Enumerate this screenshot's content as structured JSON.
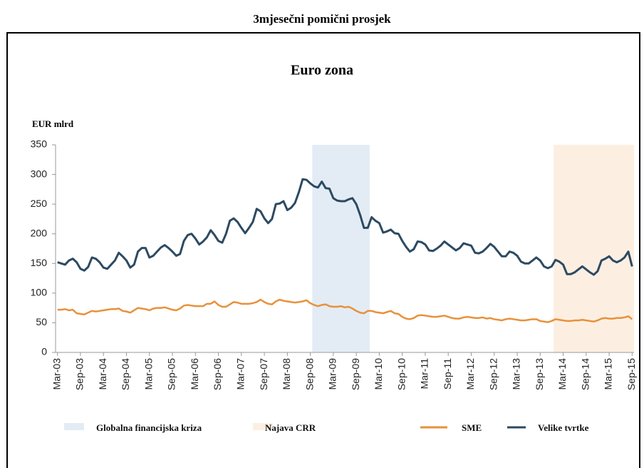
{
  "title": "3mjesečni pomični prosjek",
  "chart_data": {
    "type": "line",
    "title": "Euro zona",
    "y_label": "EUR mlrd",
    "categories": [
      "Mar-03",
      null,
      null,
      null,
      null,
      null,
      "Sep-03",
      null,
      null,
      null,
      null,
      null,
      "Mar-04",
      null,
      null,
      null,
      null,
      null,
      "Sep-04",
      null,
      null,
      null,
      null,
      null,
      "Mar-05",
      null,
      null,
      null,
      null,
      null,
      "Sep-05",
      null,
      null,
      null,
      null,
      null,
      "Mar-06",
      null,
      null,
      null,
      null,
      null,
      "Sep-06",
      null,
      null,
      null,
      null,
      null,
      "Mar-07",
      null,
      null,
      null,
      null,
      null,
      "Sep-07",
      null,
      null,
      null,
      null,
      null,
      "Mar-08",
      null,
      null,
      null,
      null,
      null,
      "Sep-08",
      null,
      null,
      null,
      null,
      null,
      "Mar-09",
      null,
      null,
      null,
      null,
      null,
      "Sep-09",
      null,
      null,
      null,
      null,
      null,
      "Mar-10",
      null,
      null,
      null,
      null,
      null,
      "Sep-10",
      null,
      null,
      null,
      null,
      null,
      "Mar-11",
      null,
      null,
      null,
      null,
      null,
      "Sep-11",
      null,
      null,
      null,
      null,
      null,
      "Mar-12",
      null,
      null,
      null,
      null,
      null,
      "Sep-12",
      null,
      null,
      null,
      null,
      null,
      "Mar-13",
      null,
      null,
      null,
      null,
      null,
      "Sep-13",
      null,
      null,
      null,
      null,
      null,
      "Mar-14",
      null,
      null,
      null,
      null,
      null,
      "Sep-14",
      null,
      null,
      null,
      null,
      null,
      "Mar-15",
      null,
      null,
      null,
      null,
      null,
      "Sep-15"
    ],
    "series": [
      {
        "name": "SME",
        "color": "#e8913a",
        "values": [
          72,
          72,
          73,
          71,
          72,
          66,
          65,
          64,
          67,
          70,
          69,
          70,
          71,
          72,
          73,
          73,
          74,
          70,
          69,
          67,
          71,
          75,
          74,
          73,
          71,
          74,
          75,
          75,
          76,
          74,
          72,
          71,
          74,
          79,
          80,
          79,
          78,
          78,
          78,
          82,
          82,
          86,
          80,
          77,
          77,
          81,
          85,
          84,
          82,
          82,
          82,
          83,
          85,
          89,
          85,
          82,
          81,
          86,
          89,
          87,
          86,
          85,
          84,
          85,
          86,
          88,
          83,
          80,
          78,
          80,
          81,
          78,
          77,
          77,
          78,
          76,
          77,
          74,
          70,
          67,
          66,
          70,
          70,
          68,
          67,
          66,
          68,
          70,
          66,
          65,
          60,
          57,
          56,
          58,
          62,
          63,
          62,
          61,
          60,
          60,
          61,
          62,
          60,
          58,
          57,
          57,
          59,
          60,
          59,
          58,
          58,
          59,
          57,
          58,
          56,
          55,
          54,
          56,
          57,
          56,
          55,
          54,
          54,
          55,
          56,
          56,
          53,
          52,
          51,
          53,
          56,
          55,
          54,
          53,
          53,
          54,
          54,
          55,
          54,
          53,
          52,
          54,
          57,
          58,
          57,
          57,
          58,
          58,
          59,
          61,
          56
        ]
      },
      {
        "name": "Velike tvrtke",
        "color": "#2c4a62",
        "values": [
          152,
          150,
          148,
          155,
          158,
          152,
          141,
          138,
          144,
          160,
          158,
          152,
          143,
          141,
          148,
          155,
          168,
          162,
          155,
          143,
          148,
          170,
          176,
          176,
          160,
          163,
          170,
          177,
          181,
          176,
          170,
          163,
          166,
          188,
          198,
          200,
          192,
          182,
          187,
          194,
          206,
          198,
          188,
          185,
          200,
          222,
          226,
          220,
          210,
          201,
          210,
          220,
          242,
          238,
          226,
          218,
          225,
          250,
          251,
          255,
          240,
          244,
          252,
          270,
          292,
          291,
          285,
          280,
          278,
          288,
          277,
          276,
          260,
          256,
          255,
          255,
          258,
          260,
          250,
          232,
          210,
          210,
          228,
          222,
          218,
          202,
          204,
          207,
          201,
          200,
          188,
          178,
          170,
          174,
          187,
          186,
          182,
          172,
          171,
          175,
          180,
          187,
          182,
          177,
          172,
          176,
          184,
          182,
          180,
          168,
          167,
          170,
          176,
          183,
          178,
          170,
          162,
          162,
          170,
          168,
          163,
          153,
          150,
          150,
          155,
          160,
          155,
          145,
          142,
          145,
          156,
          153,
          148,
          132,
          132,
          135,
          140,
          145,
          140,
          135,
          131,
          137,
          155,
          158,
          162,
          155,
          152,
          155,
          160,
          170,
          145
        ]
      }
    ],
    "shaded_regions": [
      {
        "name": "Globalna financijska kriza",
        "color": "#e3ecf5",
        "start": 67,
        "end": 81
      },
      {
        "name": "Najava CRR",
        "color": "#fcefe2",
        "start": 130,
        "end": 150
      }
    ],
    "ylim": [
      0,
      350
    ],
    "yticks": [
      0,
      50,
      100,
      150,
      200,
      250,
      300,
      350
    ],
    "grid": false
  }
}
